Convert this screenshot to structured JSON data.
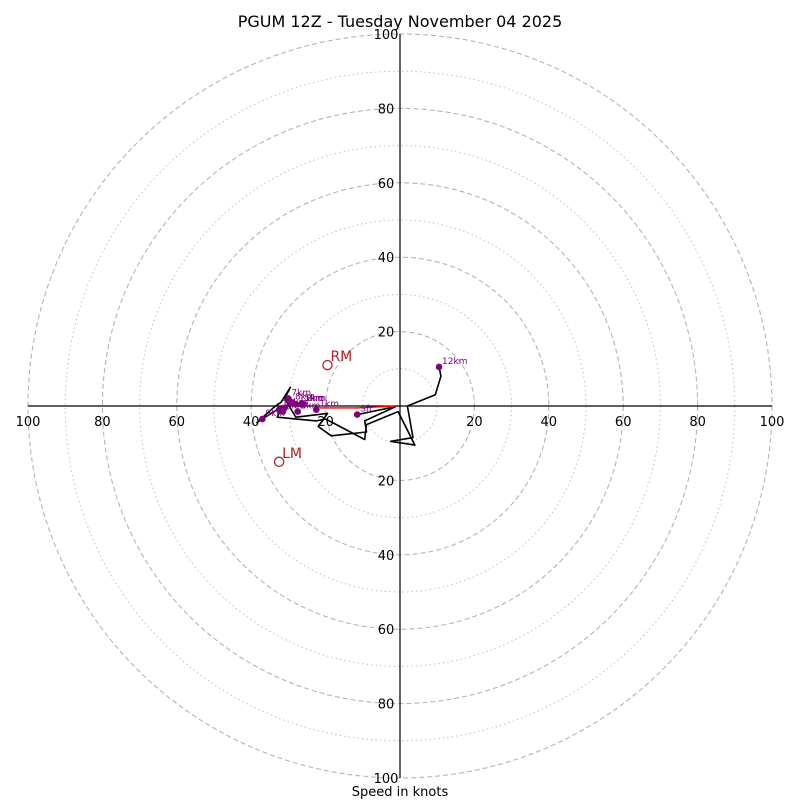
{
  "chart_data": {
    "type": "hodograph",
    "title": "PGUM 12Z - Tuesday November 04 2025",
    "xlabel": "Speed in knots",
    "units": "knots",
    "max_speed": 100,
    "ring_labels": [
      "20",
      "40",
      "60",
      "80",
      "100"
    ],
    "ring_values": [
      20,
      40,
      60,
      80,
      100
    ],
    "hodograph_trace": {
      "color": "#000000",
      "points": [
        [
          -11.5,
          -2.3
        ],
        [
          -1.2,
          -0.2
        ],
        [
          -9.5,
          -4.0
        ],
        [
          -9.0,
          -7.0
        ],
        [
          -18.5,
          -8.0
        ],
        [
          -22.0,
          -5.5
        ],
        [
          -19.5,
          -2.0
        ],
        [
          -28.0,
          -3.0
        ],
        [
          -31.0,
          2.0
        ],
        [
          -29.5,
          5.0
        ],
        [
          -32.0,
          1.0
        ],
        [
          -33.5,
          0.0
        ],
        [
          -38.5,
          -4.5
        ],
        [
          -37.0,
          -3.5
        ],
        [
          -31.5,
          0.0
        ],
        [
          -33.0,
          -3.0
        ],
        [
          -22.5,
          -4.0
        ],
        [
          -20.0,
          -3.5
        ],
        [
          -9.5,
          -9.0
        ],
        [
          -9.0,
          -5.0
        ],
        [
          -0.5,
          -1.5
        ],
        [
          4.0,
          -10.5
        ],
        [
          -2.5,
          -9.5
        ],
        [
          3.5,
          -8.5
        ],
        [
          2.0,
          0.0
        ],
        [
          9.5,
          3.0
        ],
        [
          11.0,
          8.0
        ],
        [
          10.5,
          10.5
        ]
      ]
    },
    "shear_vector": {
      "color": "#ff0000",
      "points": [
        [
          -21.5,
          -0.5
        ],
        [
          -11.5,
          -0.5
        ],
        [
          -1.0,
          0.0
        ]
      ]
    },
    "height_markers": [
      {
        "label": "Sfc",
        "u": -11.5,
        "v": -2.3
      },
      {
        "label": "1km",
        "u": -22.5,
        "v": -1.0
      },
      {
        "label": "2km",
        "u": -26.0,
        "v": 0.5
      },
      {
        "label": "3km",
        "u": -27.5,
        "v": -1.5
      },
      {
        "label": "4km",
        "u": -31.0,
        "v": -0.5
      },
      {
        "label": "5km",
        "u": -26.5,
        "v": 0.5
      },
      {
        "label": "6km",
        "u": -31.5,
        "v": -1.5
      },
      {
        "label": "7km",
        "u": -30.0,
        "v": 2.0
      },
      {
        "label": "8km",
        "u": -29.0,
        "v": 1.0
      },
      {
        "label": "9km",
        "u": -37.0,
        "v": -3.5
      },
      {
        "label": "10km",
        "u": -32.5,
        "v": -1.0
      },
      {
        "label": "11km",
        "u": -28.0,
        "v": 0.5
      },
      {
        "label": "12km",
        "u": 10.5,
        "v": 10.5
      }
    ],
    "storm_motion": [
      {
        "label": "RM",
        "u": -19.5,
        "v": 11.0
      },
      {
        "label": "LM",
        "u": -32.5,
        "v": -15.0
      }
    ]
  }
}
